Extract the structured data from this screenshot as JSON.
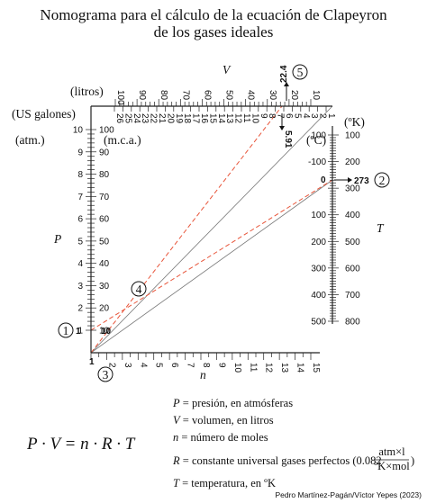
{
  "title": {
    "line1": "Nomograma para el cálculo de la ecuación de Clapeyron",
    "line2": "de los gases ideales"
  },
  "scales": {
    "V_label": "V",
    "liters_label": "(litros)",
    "liters_ticks": [
      "100",
      "90",
      "80",
      "70",
      "60",
      "50",
      "40",
      "30",
      "20",
      "10"
    ],
    "gallons_label": "(US galones)",
    "gallons_ticks": [
      "26",
      "25",
      "24",
      "23",
      "22",
      "21",
      "20",
      "19",
      "18",
      "17",
      "16",
      "15",
      "14",
      "13",
      "12",
      "11",
      "10",
      "9",
      "8",
      "7",
      "6",
      "5",
      "4",
      "3",
      "2",
      "1"
    ],
    "P_label": "P",
    "atm_label": "(atm.)",
    "atm_ticks": [
      "10",
      "9",
      "8",
      "7",
      "6",
      "5",
      "4",
      "3",
      "2",
      "1"
    ],
    "mca_label": "(m.c.a.)",
    "mca_ticks": [
      "100",
      "90",
      "80",
      "70",
      "60",
      "50",
      "40",
      "30",
      "20",
      "10"
    ],
    "T_label": "T",
    "kelvin_label": "(ºK)",
    "celsius_label": "(ºC)",
    "celsius_ticks": [
      "100",
      "-100",
      "0",
      "100",
      "200",
      "300",
      "400",
      "500"
    ],
    "kelvin_ticks": [
      "100",
      "200",
      "300",
      "400",
      "500",
      "600",
      "700",
      "800"
    ],
    "n_label": "n",
    "n_ticks": [
      "1",
      "2",
      "3",
      "4",
      "5",
      "6",
      "7",
      "8",
      "9",
      "10",
      "11",
      "12",
      "13",
      "14",
      "15"
    ]
  },
  "example": {
    "v_result": "22.4",
    "gal_result": "5.91",
    "p_value": "1",
    "mca_value": "10",
    "t_celsius": "0",
    "t_kelvin": "273",
    "n_value": "1",
    "markers": [
      "1",
      "2",
      "3",
      "4",
      "5"
    ]
  },
  "legend": {
    "equation": "P · V = n · R · T",
    "P_sym": "P",
    "P_desc": " = presión, en atmósferas",
    "V_sym": "V",
    "V_desc": " = volumen, en litros",
    "n_sym": "n",
    "n_desc": " = número de moles",
    "R_sym": "R",
    "R_desc": " = constante universal gases perfectos (0.082",
    "R_num": "atm×l",
    "R_den": "ºK×mol",
    "R_close": ")",
    "T_sym": "T",
    "T_desc": " = temperatura, en ºK"
  },
  "credit": "Pedro Martínez-Pagán/Víctor Yepes (2023)",
  "colors": {
    "ink": "#111111",
    "guide": "#e8553a",
    "reference": "#777777"
  }
}
